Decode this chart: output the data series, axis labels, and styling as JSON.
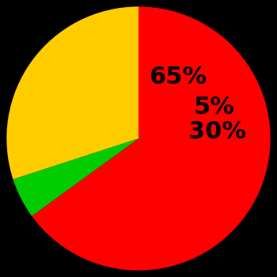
{
  "slices": [
    65,
    5,
    30
  ],
  "colors": [
    "#ff0000",
    "#00cc00",
    "#ffcc00"
  ],
  "labels": [
    "65%",
    "5%",
    "30%"
  ],
  "background_color": "#000000",
  "startangle": 90,
  "label_fontsize": 22,
  "label_fontweight": "bold",
  "label_color": "#000000",
  "label_radii": [
    0.55,
    0.62,
    0.6
  ]
}
